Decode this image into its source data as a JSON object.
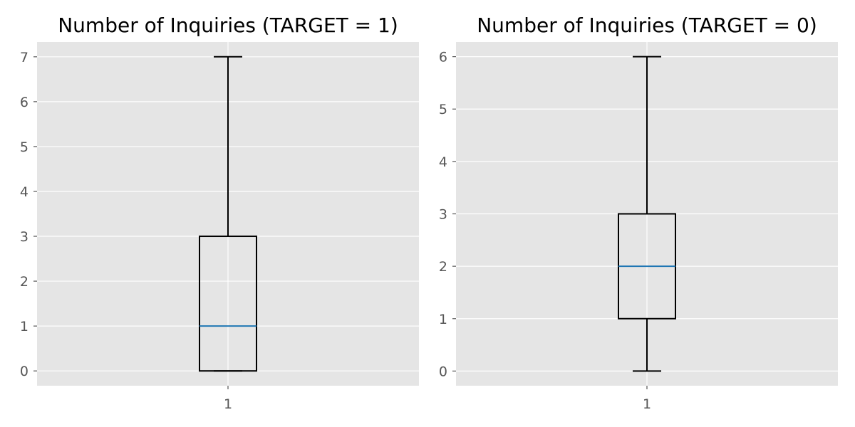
{
  "figure": {
    "background": "#ffffff",
    "style": "ggplot"
  },
  "colors": {
    "panel_background": "#E5E5E5",
    "grid": "#FFFFFF",
    "box": "#000000",
    "median": "#1F77B4",
    "tick_label": "#555555",
    "title": "#000000"
  },
  "chart_data": [
    {
      "type": "box",
      "title": "Number of Inquiries (TARGET = 1)",
      "xlabel": "",
      "ylabel": "",
      "categories": [
        "1"
      ],
      "box": {
        "whislo": 0,
        "q1": 0,
        "median": 1,
        "q3": 3,
        "whishi": 7
      },
      "ylim": [
        -0.33,
        7.33
      ],
      "yticks": [
        0,
        1,
        2,
        3,
        4,
        5,
        6,
        7
      ],
      "grid": true,
      "legend": "none"
    },
    {
      "type": "box",
      "title": "Number of Inquiries (TARGET = 0)",
      "xlabel": "",
      "ylabel": "",
      "categories": [
        "1"
      ],
      "box": {
        "whislo": 0,
        "q1": 1,
        "median": 2,
        "q3": 3,
        "whishi": 6
      },
      "ylim": [
        -0.28,
        6.28
      ],
      "yticks": [
        0,
        1,
        2,
        3,
        4,
        5,
        6
      ],
      "grid": true,
      "legend": "none"
    }
  ]
}
